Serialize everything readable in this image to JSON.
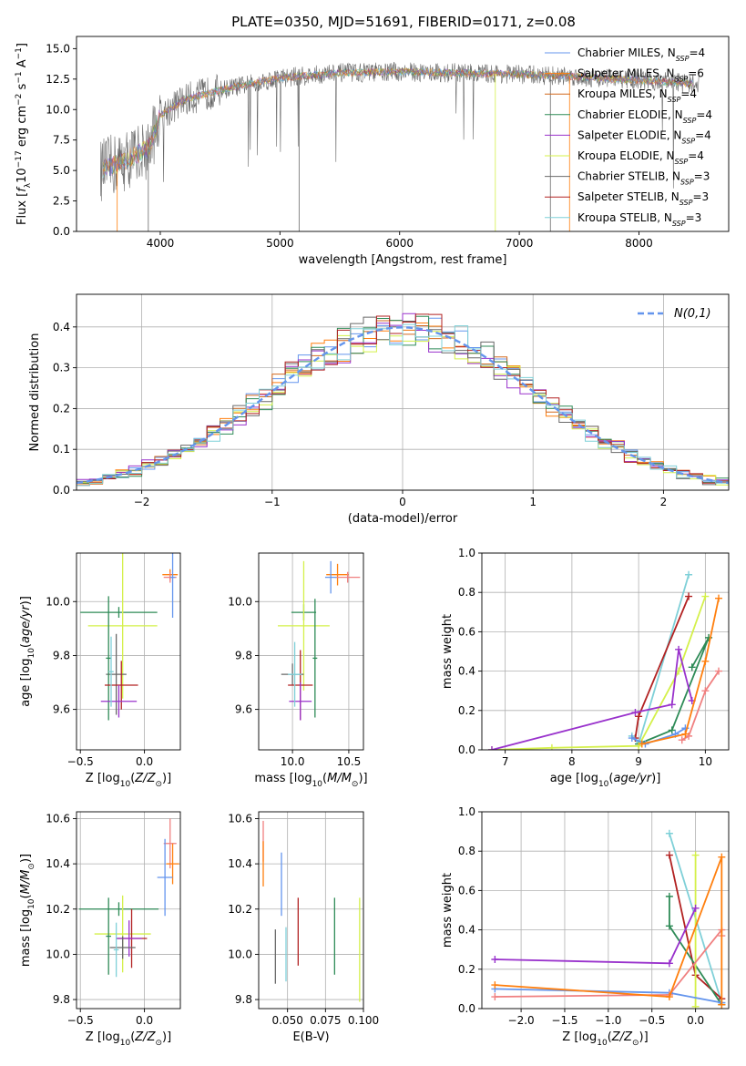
{
  "title": "PLATE=0350, MJD=51691, FIBERID=0171, z=0.08",
  "colors": {
    "chabrier_miles": "#6495ed",
    "salpeter_miles": "#ff7f0e",
    "kroupa_miles": "#d2691e",
    "chabrier_elodie": "#2e8b57",
    "salpeter_elodie": "#9932cc",
    "kroupa_elodie": "#d4f04a",
    "chabrier_stelib": "#696969",
    "salpeter_stelib": "#b22222",
    "kroupa_stelib": "#7fd0d8",
    "pink": "#f08080",
    "grid": "#b0b0b0"
  },
  "chart_data": [
    {
      "type": "line",
      "id": "spectrum",
      "xlabel": "wavelength [Angstrom, rest frame]",
      "ylabel": "Flux [f_λ10^-17 erg cm^-2 s^-1 A^-1]",
      "xlim": [
        3300,
        8750
      ],
      "ylim": [
        0,
        16
      ],
      "xticks": [
        4000,
        5000,
        6000,
        7000,
        8000
      ],
      "yticks": [
        "0.0",
        "2.5",
        "5.0",
        "7.5",
        "10.0",
        "12.5",
        "15.0"
      ],
      "grid": false,
      "legend_position": "right",
      "series": [
        {
          "name": "Chabrier MILES, N_SSP=4"
        },
        {
          "name": "Salpeter MILES, N_SSP=6"
        },
        {
          "name": "Kroupa MILES, N_SSP=4"
        },
        {
          "name": "Chabrier ELODIE, N_SSP=4"
        },
        {
          "name": "Salpeter ELODIE, N_SSP=4"
        },
        {
          "name": "Kroupa ELODIE, N_SSP=4"
        },
        {
          "name": "Chabrier STELIB, N_SSP=3"
        },
        {
          "name": "Salpeter STELIB, N_SSP=3"
        },
        {
          "name": "Kroupa STELIB, N_SSP=3"
        }
      ],
      "continuum": {
        "x": [
          3500,
          3700,
          3900,
          4000,
          4200,
          4500,
          4800,
          5000,
          5500,
          6000,
          6500,
          7000,
          7500,
          8000,
          8500
        ],
        "y": [
          5.0,
          5.8,
          6.8,
          9.5,
          10.8,
          11.6,
          12.2,
          12.6,
          13.0,
          13.1,
          13.0,
          12.9,
          12.7,
          12.4,
          12.1
        ]
      }
    },
    {
      "type": "line",
      "id": "residuals",
      "xlabel": "(data-model)/error",
      "ylabel": "Normed distribution",
      "xlim": [
        -2.5,
        2.5
      ],
      "ylim": [
        0,
        0.48
      ],
      "xticks": [
        "−2",
        "−1",
        "0",
        "1",
        "2"
      ],
      "yticks": [
        "0.0",
        "0.1",
        "0.2",
        "0.3",
        "0.4"
      ],
      "grid": true,
      "legend": "N(0,1)",
      "legend_position": "top-right",
      "gaussian": {
        "mean": 0,
        "sigma": 1
      }
    },
    {
      "type": "scatter",
      "id": "age_vs_Z",
      "xlabel": "Z [log10(Z/Z_sun)]",
      "ylabel": "age [log10(age/yr)]",
      "xlim": [
        -0.53,
        0.28
      ],
      "ylim": [
        9.45,
        10.18
      ],
      "xticks": [
        "−0.5",
        "0.0"
      ],
      "yticks": [
        "9.6",
        "9.8",
        "10.0"
      ],
      "grid": true,
      "points": [
        {
          "c": "salpeter_miles",
          "x": 0.2,
          "y": 10.1,
          "xe": 0.06,
          "ye": 0.02
        },
        {
          "c": "pink",
          "x": 0.2,
          "y": 10.09,
          "xe": 0.05,
          "ye": 0.02
        },
        {
          "c": "chabrier_miles",
          "x": 0.22,
          "y": 10.09,
          "xe": 0.02,
          "ye": 0.15
        },
        {
          "c": "chabrier_elodie",
          "x": -0.2,
          "y": 9.96,
          "xe": 0.3,
          "ye": 0.02
        },
        {
          "c": "kroupa_elodie",
          "x": -0.17,
          "y": 9.91,
          "xe": 0.27,
          "ye": 0.27
        },
        {
          "c": "chabrier_stelib",
          "x": -0.22,
          "y": 9.73,
          "xe": 0.08,
          "ye": 0.15
        },
        {
          "c": "chabrier_elodie",
          "x": -0.28,
          "y": 9.79,
          "xe": 0.02,
          "ye": 0.23
        },
        {
          "c": "salpeter_stelib",
          "x": -0.18,
          "y": 9.69,
          "xe": 0.13,
          "ye": 0.09
        },
        {
          "c": "salpeter_elodie",
          "x": -0.2,
          "y": 9.63,
          "xe": 0.14,
          "ye": 0.06
        },
        {
          "c": "kroupa_stelib",
          "x": -0.26,
          "y": 9.74,
          "xe": 0.02,
          "ye": 0.13
        }
      ]
    },
    {
      "type": "scatter",
      "id": "age_vs_mass",
      "xlabel": "mass [log10(M/M_sun)]",
      "ylabel": "",
      "xlim": [
        9.7,
        10.63
      ],
      "ylim": [
        9.45,
        10.18
      ],
      "xticks": [
        "10.0",
        "10.5"
      ],
      "yticks": [
        "9.6",
        "9.8",
        "10.0"
      ],
      "grid": true,
      "points": [
        {
          "c": "salpeter_miles",
          "x": 10.4,
          "y": 10.1,
          "xe": 0.1,
          "ye": 0.04
        },
        {
          "c": "pink",
          "x": 10.49,
          "y": 10.09,
          "xe": 0.11,
          "ye": 0.02
        },
        {
          "c": "chabrier_miles",
          "x": 10.34,
          "y": 10.09,
          "xe": 0.05,
          "ye": 0.06
        },
        {
          "c": "chabrier_elodie",
          "x": 10.1,
          "y": 9.96,
          "xe": 0.11,
          "ye": 0.03
        },
        {
          "c": "kroupa_elodie",
          "x": 10.1,
          "y": 9.91,
          "xe": 0.23,
          "ye": 0.24
        },
        {
          "c": "chabrier_stelib",
          "x": 10.0,
          "y": 9.73,
          "xe": 0.1,
          "ye": 0.04
        },
        {
          "c": "chabrier_elodie",
          "x": 10.2,
          "y": 9.79,
          "xe": 0.02,
          "ye": 0.22
        },
        {
          "c": "salpeter_stelib",
          "x": 10.07,
          "y": 9.69,
          "xe": 0.11,
          "ye": 0.13
        },
        {
          "c": "salpeter_elodie",
          "x": 10.07,
          "y": 9.63,
          "xe": 0.1,
          "ye": 0.07
        },
        {
          "c": "kroupa_stelib",
          "x": 10.02,
          "y": 9.73,
          "xe": 0.06,
          "ye": 0.12
        }
      ]
    },
    {
      "type": "line",
      "id": "massweight_vs_age",
      "xlabel": "age [log10(age/yr)]",
      "ylabel": "mass weight",
      "xlim": [
        6.65,
        10.35
      ],
      "ylim": [
        0,
        1
      ],
      "xticks": [
        "7",
        "8",
        "9",
        "10"
      ],
      "yticks": [
        "0.0",
        "0.2",
        "0.4",
        "0.6",
        "0.8",
        "1.0"
      ],
      "grid": true,
      "series": [
        {
          "c": "kroupa_stelib",
          "x": [
            8.9,
            9.0,
            9.75
          ],
          "y": [
            0.07,
            0.03,
            0.89
          ]
        },
        {
          "c": "salpeter_stelib",
          "x": [
            8.95,
            9.0,
            9.75
          ],
          "y": [
            0.06,
            0.17,
            0.78
          ]
        },
        {
          "c": "chabrier_elodie",
          "x": [
            9.0,
            9.5,
            10.05,
            9.8
          ],
          "y": [
            0.03,
            0.1,
            0.57,
            0.42
          ]
        },
        {
          "c": "kroupa_elodie",
          "x": [
            6.8,
            7.7,
            9.0,
            9.6,
            10.0
          ],
          "y": [
            0.0,
            0.01,
            0.02,
            0.4,
            0.78
          ]
        },
        {
          "c": "salpeter_elodie",
          "x": [
            6.8,
            8.95,
            9.5,
            9.6,
            9.8
          ],
          "y": [
            0.0,
            0.19,
            0.23,
            0.51,
            0.25
          ]
        },
        {
          "c": "chabrier_miles",
          "x": [
            8.9,
            9.1,
            9.55,
            9.7
          ],
          "y": [
            0.06,
            0.03,
            0.08,
            0.11
          ]
        },
        {
          "c": "pink",
          "x": [
            9.65,
            9.75,
            10.0,
            10.2
          ],
          "y": [
            0.05,
            0.07,
            0.3,
            0.4
          ]
        },
        {
          "c": "salpeter_miles",
          "x": [
            9.05,
            9.7,
            10.0,
            10.2
          ],
          "y": [
            0.03,
            0.08,
            0.45,
            0.77
          ]
        }
      ]
    },
    {
      "type": "scatter",
      "id": "mass_vs_Z",
      "xlabel": "Z [log10(Z/Z_sun)]",
      "ylabel": "mass [log10(M/M_sun)]",
      "xlim": [
        -0.53,
        0.28
      ],
      "ylim": [
        9.76,
        10.63
      ],
      "xticks": [
        "−0.5",
        "0.0"
      ],
      "yticks": [
        "9.8",
        "10.0",
        "10.2",
        "10.4",
        "10.6"
      ],
      "grid": true,
      "points": [
        {
          "c": "pink",
          "x": 0.2,
          "y": 10.49,
          "xe": 0.05,
          "ye": 0.11
        },
        {
          "c": "salpeter_miles",
          "x": 0.22,
          "y": 10.4,
          "xe": 0.05,
          "ye": 0.09
        },
        {
          "c": "chabrier_miles",
          "x": 0.16,
          "y": 10.34,
          "xe": 0.06,
          "ye": 0.17
        },
        {
          "c": "chabrier_elodie",
          "x": -0.2,
          "y": 10.2,
          "xe": 0.31,
          "ye": 0.03
        },
        {
          "c": "kroupa_elodie",
          "x": -0.17,
          "y": 10.09,
          "xe": 0.22,
          "ye": 0.17
        },
        {
          "c": "salpeter_stelib",
          "x": -0.1,
          "y": 10.07,
          "xe": 0.12,
          "ye": 0.13
        },
        {
          "c": "salpeter_elodie",
          "x": -0.12,
          "y": 10.07,
          "xe": 0.1,
          "ye": 0.08
        },
        {
          "c": "chabrier_stelib",
          "x": -0.17,
          "y": 10.03,
          "xe": 0.1,
          "ye": 0.05
        },
        {
          "c": "chabrier_elodie",
          "x": -0.28,
          "y": 10.08,
          "xe": 0.02,
          "ye": 0.17
        },
        {
          "c": "kroupa_stelib",
          "x": -0.22,
          "y": 10.02,
          "xe": 0.02,
          "ye": 0.12
        }
      ]
    },
    {
      "type": "scatter",
      "id": "mass_vs_ebv",
      "xlabel": "E(B-V)",
      "ylabel": "",
      "xlim": [
        0.031,
        0.1
      ],
      "ylim": [
        9.76,
        10.63
      ],
      "xticks": [
        "0.050",
        "0.075",
        "0.100"
      ],
      "yticks": [
        "9.8",
        "10.0",
        "10.2",
        "10.4",
        "10.6"
      ],
      "grid": true,
      "points": [
        {
          "c": "pink",
          "x": 0.034,
          "y": 10.5,
          "ye": 0.09
        },
        {
          "c": "salpeter_miles",
          "x": 0.034,
          "y": 10.4,
          "ye": 0.1
        },
        {
          "c": "chabrier_miles",
          "x": 0.046,
          "y": 10.31,
          "ye": 0.14
        },
        {
          "c": "chabrier_stelib",
          "x": 0.042,
          "y": 9.99,
          "ye": 0.12
        },
        {
          "c": "kroupa_stelib",
          "x": 0.049,
          "y": 10.0,
          "ye": 0.12
        },
        {
          "c": "salpeter_stelib",
          "x": 0.057,
          "y": 10.1,
          "ye": 0.15
        },
        {
          "c": "chabrier_elodie",
          "x": 0.081,
          "y": 10.08,
          "ye": 0.17
        },
        {
          "c": "kroupa_elodie",
          "x": 0.0975,
          "y": 10.02,
          "ye": 0.23
        }
      ]
    },
    {
      "type": "line",
      "id": "massweight_vs_Z",
      "xlabel": "Z [log10(Z/Z_sun)]",
      "ylabel": "mass weight",
      "xlim": [
        -2.45,
        0.38
      ],
      "ylim": [
        0,
        1
      ],
      "xticks": [
        "−2.0",
        "−1.5",
        "−1.0",
        "−0.5",
        "0.0"
      ],
      "yticks": [
        "0.0",
        "0.2",
        "0.4",
        "0.6",
        "0.8",
        "1.0"
      ],
      "grid": true,
      "series": [
        {
          "c": "kroupa_stelib",
          "x": [
            -0.3,
            0.3
          ],
          "y": [
            0.89,
            0.03
          ]
        },
        {
          "c": "salpeter_stelib",
          "x": [
            -0.3,
            0.0,
            0.3
          ],
          "y": [
            0.78,
            0.17,
            0.05
          ]
        },
        {
          "c": "chabrier_elodie",
          "x": [
            -0.3,
            -0.3,
            0.3
          ],
          "y": [
            0.57,
            0.42,
            0.02
          ]
        },
        {
          "c": "kroupa_elodie",
          "x": [
            0.0,
            0.0
          ],
          "y": [
            0.78,
            0.01
          ]
        },
        {
          "c": "salpeter_elodie",
          "x": [
            -2.3,
            -0.3,
            0.0
          ],
          "y": [
            0.25,
            0.23,
            0.51
          ]
        },
        {
          "c": "chabrier_miles",
          "x": [
            -2.3,
            -0.3,
            0.3
          ],
          "y": [
            0.1,
            0.08,
            0.03
          ]
        },
        {
          "c": "pink",
          "x": [
            -2.3,
            -0.3,
            0.3,
            0.3
          ],
          "y": [
            0.06,
            0.07,
            0.4,
            0.37
          ]
        },
        {
          "c": "salpeter_miles",
          "x": [
            -2.3,
            -0.3,
            0.3,
            0.3
          ],
          "y": [
            0.12,
            0.06,
            0.77,
            0.02
          ]
        }
      ]
    }
  ]
}
